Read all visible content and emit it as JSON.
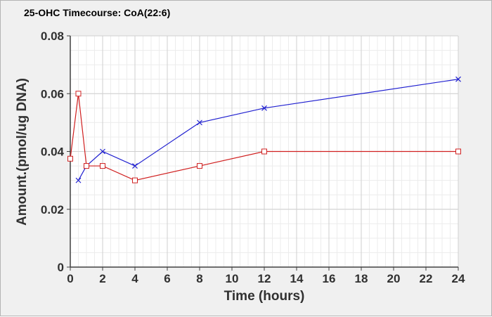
{
  "chart_data": {
    "type": "line",
    "title": "25-OHC Timecourse: CoA(22:6)",
    "xlabel": "Time (hours)",
    "ylabel": "Amount.(pmol/ug DNA)",
    "xlim": [
      0,
      24
    ],
    "ylim": [
      0,
      0.08
    ],
    "x_ticks": [
      "0",
      "2",
      "4",
      "6",
      "8",
      "10",
      "12",
      "14",
      "16",
      "18",
      "20",
      "22",
      "24"
    ],
    "y_ticks": [
      "0",
      "0.02",
      "0.04",
      "0.06",
      "0.08"
    ],
    "grid": true,
    "series": [
      {
        "color": "#2020d0",
        "marker": "x",
        "points": [
          [
            0.5,
            0.03
          ],
          [
            1,
            0.035
          ],
          [
            2,
            0.04
          ],
          [
            4,
            0.035
          ],
          [
            8,
            0.05
          ],
          [
            12,
            0.055
          ],
          [
            24,
            0.065
          ]
        ]
      },
      {
        "color": "#d02020",
        "marker": "square",
        "points": [
          [
            0,
            0.0375
          ],
          [
            0.5,
            0.06
          ],
          [
            1,
            0.035
          ],
          [
            2,
            0.035
          ],
          [
            4,
            0.03
          ],
          [
            8,
            0.035
          ],
          [
            12,
            0.04
          ],
          [
            24,
            0.04
          ]
        ]
      }
    ]
  }
}
